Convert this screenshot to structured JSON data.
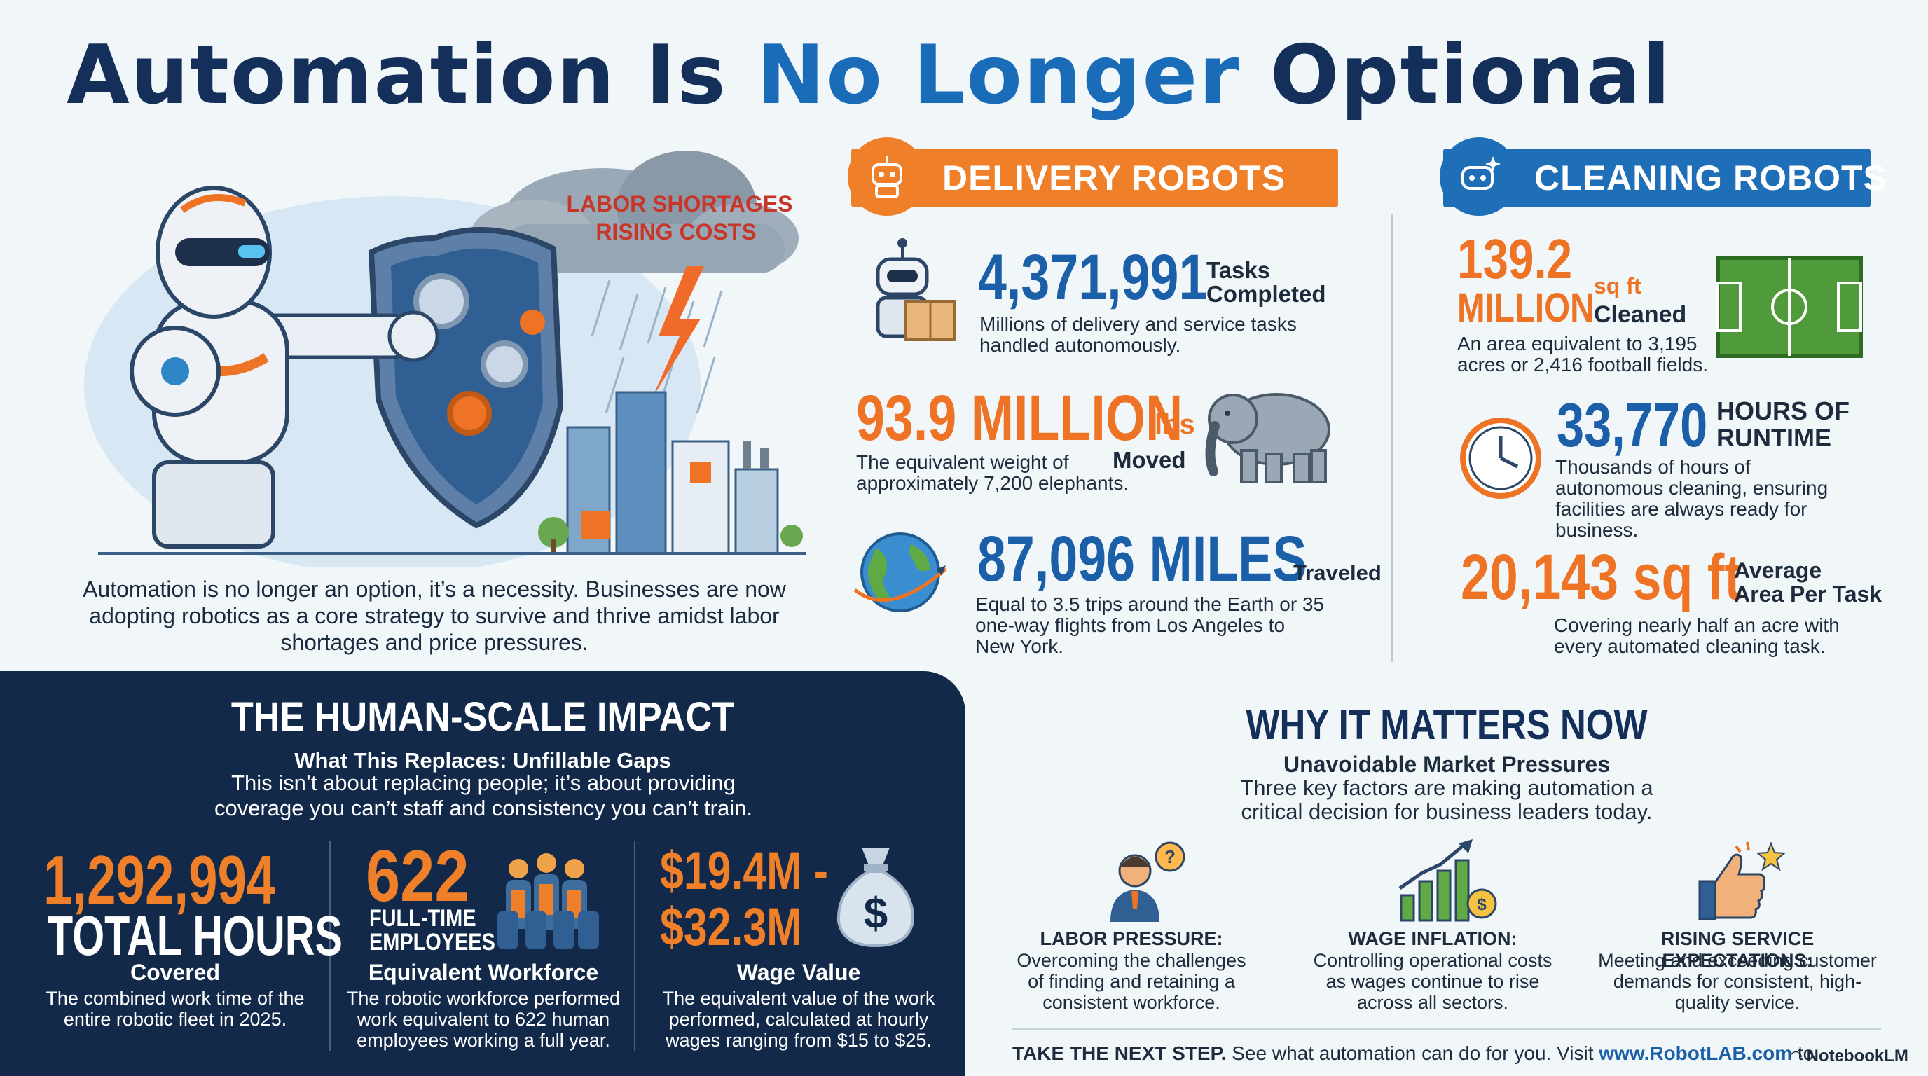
{
  "title": {
    "part1": "Automation Is ",
    "part2": "No Longer",
    "part3": " Optional"
  },
  "hero": {
    "cloud_line1": "LABOR SHORTAGES",
    "cloud_line2": "RISING COSTS",
    "intro": "Automation is no longer an option, it’s a necessity. Businesses are now adopting robotics as a core strategy to survive and thrive amidst labor shortages and price pressures."
  },
  "delivery": {
    "header": "DELIVERY ROBOTS",
    "stat1": {
      "value": "4,371,991",
      "label1": "Tasks",
      "label2": "Completed",
      "desc": "Millions of delivery and service tasks handled autonomously."
    },
    "stat2": {
      "value": "93.9 MILLION",
      "unit": "lbs",
      "label": "Moved",
      "desc1": "The equivalent weight of",
      "desc2": "approximately 7,200 elephants."
    },
    "stat3": {
      "value": "87,096 MILES",
      "label": "Traveled",
      "desc": "Equal to 3.5 trips around the Earth or 35 one-way flights from Los Angeles to New York."
    }
  },
  "cleaning": {
    "header": "CLEANING ROBOTS",
    "stat1": {
      "value1": "139.2",
      "value2": "MILLION",
      "unit": "sq ft",
      "label": "Cleaned",
      "desc": "An area equivalent to 3,195 acres or 2,416 football fields."
    },
    "stat2": {
      "value": "33,770",
      "label1": "HOURS OF",
      "label2": "RUNTIME",
      "desc": "Thousands of hours of autonomous cleaning, ensuring facilities are always ready for business."
    },
    "stat3": {
      "value": "20,143 sq ft",
      "label1": "Average",
      "label2": "Area Per Task",
      "desc": "Covering nearly half an acre with every automated cleaning task."
    }
  },
  "impact": {
    "title": "THE HUMAN-SCALE IMPACT",
    "subtitle": "What This Replaces: Unfillable Gaps",
    "desc": "This isn’t about replacing people; it’s about providing coverage you can’t staff and consistency you can’t train.",
    "col1": {
      "value": "1,292,994",
      "big_label": "TOTAL HOURS",
      "label": "Covered",
      "desc": "The combined work time of the entire robotic fleet in 2025."
    },
    "col2": {
      "value": "622",
      "small1": "FULL-TIME",
      "small2": "EMPLOYEES",
      "label": "Equivalent Workforce",
      "desc": "The robotic workforce performed work equivalent to 622 human employees working a full year."
    },
    "col3": {
      "value1": "$19.4M -",
      "value2": "$32.3M",
      "label": "Wage Value",
      "desc": "The equivalent value of the work performed, calculated at hourly wages ranging from $15 to $25."
    }
  },
  "why": {
    "title": "WHY IT MATTERS NOW",
    "subtitle": "Unavoidable Market Pressures",
    "desc": "Three key factors are making automation a critical decision for business leaders today.",
    "factors": [
      {
        "label": "LABOR PRESSURE:",
        "desc": "Overcoming the challenges of finding and retaining a consistent workforce."
      },
      {
        "label": "WAGE INFLATION:",
        "desc": "Controlling operational costs as wages continue to rise across all sectors."
      },
      {
        "label": "RISING SERVICE EXPECTATIONS:",
        "desc": "Meeting and exceeding customer demands for consistent, high-quality service."
      }
    ]
  },
  "footer": {
    "bold": "TAKE THE NEXT STEP.",
    "text": " See what automation can do for you. Visit ",
    "link": "www.RobotLAB.com",
    "tail": " to"
  },
  "brand": "NotebookLM",
  "colors": {
    "navy": "#14305a",
    "blue": "#1a6cb8",
    "orange": "#ee7325",
    "panel": "#13294a"
  }
}
